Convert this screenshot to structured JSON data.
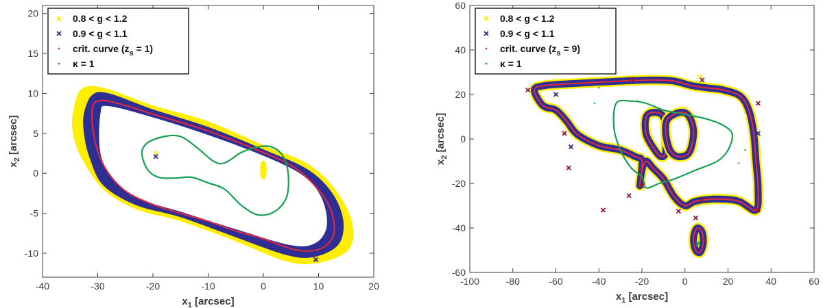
{
  "colors": {
    "yellow": "#ffee00",
    "navy": "#2e2e93",
    "red": "#e8283c",
    "green": "#14a050",
    "axis": "#3a3a3a",
    "marker": "#8a1c2c"
  },
  "chart_data": [
    {
      "type": "scatter",
      "xlim": [
        -40,
        20
      ],
      "ylim": [
        -13,
        21
      ],
      "xticks": [
        "-40",
        "-30",
        "-20",
        "-10",
        "0",
        "10",
        "20"
      ],
      "yticks": [
        "-10",
        "-5",
        "0",
        "5",
        "10",
        "15",
        "20"
      ],
      "xlabel": {
        "main": "x",
        "sub": "1",
        "rest": " [arcsec]"
      },
      "ylabel": {
        "main": "x",
        "sub": "2",
        "rest": " [arcsec]"
      },
      "legend_position": "top-left",
      "legend": [
        {
          "label": "0.8 < g < 1.2",
          "marker": "x",
          "color": "#ffee00"
        },
        {
          "label": "0.9 < g < 1.1",
          "marker": "x",
          "color": "#2e2e93"
        },
        {
          "label": "crit. curve (z",
          "sub": "s",
          "rest": " = 1)",
          "marker": "dot",
          "color": "#e8283c"
        },
        {
          "label": "κ = 1",
          "marker": "dot",
          "color": "#14a050"
        }
      ],
      "regions": {
        "yellow_band": [
          [
            -34.5,
            7.5
          ],
          [
            -33,
            10.5
          ],
          [
            -29,
            10.7
          ],
          [
            -20,
            8.5
          ],
          [
            -10,
            6.5
          ],
          [
            0,
            3.5
          ],
          [
            8,
            1.2
          ],
          [
            13,
            -2
          ],
          [
            16,
            -6
          ],
          [
            15.5,
            -9.5
          ],
          [
            10,
            -11.2
          ],
          [
            4,
            -11
          ],
          [
            -5,
            -8.5
          ],
          [
            -15,
            -6
          ],
          [
            -23,
            -4.5
          ],
          [
            -29,
            -2
          ],
          [
            -33,
            2
          ],
          [
            -34.5,
            5
          ]
        ],
        "navy_band_outer": [
          [
            -32.5,
            7.5
          ],
          [
            -31,
            9.8
          ],
          [
            -28,
            10
          ],
          [
            -20,
            8
          ],
          [
            -10,
            5.8
          ],
          [
            0,
            3
          ],
          [
            8,
            0.5
          ],
          [
            12.5,
            -2.5
          ],
          [
            14.5,
            -6
          ],
          [
            13.5,
            -9
          ],
          [
            9,
            -10.5
          ],
          [
            4,
            -10.2
          ],
          [
            -5,
            -8
          ],
          [
            -15,
            -5.5
          ],
          [
            -23,
            -4
          ],
          [
            -29,
            -1.5
          ],
          [
            -31.5,
            2
          ],
          [
            -32.5,
            5
          ]
        ],
        "white_inner": [
          [
            -29.5,
            7.5
          ],
          [
            -28,
            8.4
          ],
          [
            -20,
            7
          ],
          [
            -10,
            4.8
          ],
          [
            0,
            2.2
          ],
          [
            7,
            -0.2
          ],
          [
            10.5,
            -3
          ],
          [
            11.5,
            -6.5
          ],
          [
            9.5,
            -8.7
          ],
          [
            5,
            -9
          ],
          [
            -5,
            -7
          ],
          [
            -15,
            -4.8
          ],
          [
            -22,
            -3.3
          ],
          [
            -27,
            -1
          ],
          [
            -29.5,
            2.5
          ]
        ],
        "yellow_blob": {
          "cx": 0,
          "cy": 0.4,
          "rx": 0.6,
          "ry": 1.2
        }
      },
      "series": [
        {
          "name": "crit. curve (zs = 1)",
          "kind": "closed",
          "color": "#e8283c",
          "points": [
            [
              -31,
              8
            ],
            [
              -29.5,
              9.1
            ],
            [
              -25,
              8.5
            ],
            [
              -20,
              7.4
            ],
            [
              -15,
              6.4
            ],
            [
              -10,
              5.3
            ],
            [
              -5,
              4
            ],
            [
              0,
              2.6
            ],
            [
              5,
              1
            ],
            [
              9,
              -1.3
            ],
            [
              12,
              -4.2
            ],
            [
              12.8,
              -7.5
            ],
            [
              10.5,
              -9.4
            ],
            [
              6,
              -9.6
            ],
            [
              0,
              -8.2
            ],
            [
              -5,
              -7.2
            ],
            [
              -10,
              -6
            ],
            [
              -15,
              -5
            ],
            [
              -20,
              -3.9
            ],
            [
              -25,
              -2.2
            ],
            [
              -28.5,
              0.5
            ],
            [
              -30.5,
              4
            ]
          ]
        },
        {
          "name": "κ = 1",
          "kind": "closed",
          "color": "#14a050",
          "points": [
            [
              -22,
              2.5
            ],
            [
              -21,
              3.8
            ],
            [
              -18,
              4.6
            ],
            [
              -15,
              4.6
            ],
            [
              -12,
              3.2
            ],
            [
              -9,
              1.5
            ],
            [
              -7,
              1.3
            ],
            [
              -4,
              2.6
            ],
            [
              -1,
              3.3
            ],
            [
              1.5,
              3.3
            ],
            [
              3.5,
              2.2
            ],
            [
              4.5,
              0
            ],
            [
              4.2,
              -3
            ],
            [
              2,
              -4.8
            ],
            [
              -1,
              -5.2
            ],
            [
              -4,
              -4
            ],
            [
              -7,
              -2
            ],
            [
              -10,
              -1.2
            ],
            [
              -13,
              -0.5
            ],
            [
              -16,
              -0.6
            ],
            [
              -19,
              -0.5
            ],
            [
              -21,
              0.5
            ]
          ]
        }
      ],
      "markers": [
        {
          "x": -19.5,
          "y": 2.5,
          "color": "#ffee00"
        },
        {
          "x": -19.5,
          "y": 2.1,
          "color": "#2e2e93"
        },
        {
          "x": 9.5,
          "y": -10.8,
          "color": "#2e2e93"
        }
      ]
    },
    {
      "type": "scatter",
      "xlim": [
        -100,
        60
      ],
      "ylim": [
        -60,
        60
      ],
      "xticks": [
        "-100",
        "-80",
        "-60",
        "-40",
        "-20",
        "0",
        "20",
        "40",
        "60"
      ],
      "yticks": [
        "-60",
        "-40",
        "-20",
        "0",
        "20",
        "40",
        "60"
      ],
      "xlabel": {
        "main": "x",
        "sub": "1",
        "rest": " [arcsec]"
      },
      "ylabel": {
        "main": "x",
        "sub": "2",
        "rest": " [arcsec]"
      },
      "legend_position": "top-left",
      "legend": [
        {
          "label": "0.8 < g < 1.2",
          "marker": "x",
          "color": "#ffee00"
        },
        {
          "label": "0.9 < g < 1.1",
          "marker": "x",
          "color": "#2e2e93"
        },
        {
          "label": "crit. curve (z",
          "sub": "s",
          "rest": " = 9)",
          "marker": "dot",
          "color": "#e8283c"
        },
        {
          "label": "κ = 1",
          "marker": "dot",
          "color": "#14a050"
        }
      ],
      "series": [
        {
          "name": "crit. curve (zs = 9)",
          "kind": "closed",
          "color": "#e8283c",
          "points": [
            [
              -70,
              22
            ],
            [
              -65,
              24
            ],
            [
              -50,
              25
            ],
            [
              -30,
              26
            ],
            [
              -15,
              26.5
            ],
            [
              -5,
              26
            ],
            [
              3,
              24
            ],
            [
              10,
              23
            ],
            [
              18,
              22
            ],
            [
              26,
              19
            ],
            [
              30,
              12
            ],
            [
              32,
              2
            ],
            [
              33,
              -10
            ],
            [
              34,
              -22
            ],
            [
              33,
              -32
            ],
            [
              25,
              -28
            ],
            [
              15,
              -27
            ],
            [
              5,
              -28
            ],
            [
              0,
              -30
            ],
            [
              -5,
              -26
            ],
            [
              -10,
              -18
            ],
            [
              -15,
              -13
            ],
            [
              -18,
              -10
            ],
            [
              -20,
              -14
            ],
            [
              -21,
              -21
            ],
            [
              -20,
              -10
            ],
            [
              -23,
              -8
            ],
            [
              -30,
              -5
            ],
            [
              -40,
              -3
            ],
            [
              -50,
              2
            ],
            [
              -55,
              8
            ],
            [
              -60,
              13
            ],
            [
              -66,
              15
            ]
          ]
        },
        {
          "name": "inner-loop-left",
          "kind": "closed",
          "color": "#e8283c",
          "points": [
            [
              -18,
              10
            ],
            [
              -14,
              12
            ],
            [
              -10,
              10
            ],
            [
              -9,
              3
            ],
            [
              -9,
              -6
            ],
            [
              -11,
              -8
            ],
            [
              -14,
              -5
            ],
            [
              -18,
              2
            ]
          ]
        },
        {
          "name": "inner-loop-right",
          "kind": "closed",
          "color": "#e8283c",
          "points": [
            [
              -8,
              9
            ],
            [
              -2,
              12
            ],
            [
              2,
              10
            ],
            [
              4,
              3
            ],
            [
              2,
              -6
            ],
            [
              -3,
              -8
            ],
            [
              -7,
              -5
            ],
            [
              -9,
              3
            ]
          ]
        },
        {
          "name": "small-island",
          "kind": "closed",
          "color": "#e8283c",
          "points": [
            [
              6,
              -40
            ],
            [
              8,
              -42
            ],
            [
              8.5,
              -47
            ],
            [
              7,
              -51
            ],
            [
              5,
              -50
            ],
            [
              4,
              -46
            ],
            [
              4.5,
              -42
            ]
          ]
        },
        {
          "name": "κ = 1",
          "kind": "closed",
          "color": "#14a050",
          "points": [
            [
              -32,
              16
            ],
            [
              -25,
              17
            ],
            [
              -18,
              16
            ],
            [
              -10,
              13
            ],
            [
              0,
              11
            ],
            [
              10,
              9
            ],
            [
              18,
              6
            ],
            [
              22,
              2
            ],
            [
              20,
              -5
            ],
            [
              15,
              -10
            ],
            [
              5,
              -14
            ],
            [
              -5,
              -18
            ],
            [
              -12,
              -20
            ],
            [
              -18,
              -22
            ],
            [
              -20,
              -17
            ],
            [
              -25,
              -13
            ],
            [
              -30,
              -5
            ],
            [
              -33,
              5
            ]
          ]
        }
      ],
      "markers": [
        {
          "x": -73,
          "y": 22,
          "color": "#8a1c2c"
        },
        {
          "x": -60,
          "y": 20,
          "color": "#2e2e93"
        },
        {
          "x": -56,
          "y": 2.5,
          "color": "#8a1c2c"
        },
        {
          "x": -53,
          "y": -3.5,
          "color": "#2e2e93"
        },
        {
          "x": -54,
          "y": -13,
          "color": "#8a1c2c"
        },
        {
          "x": -38,
          "y": -32,
          "color": "#8a1c2c"
        },
        {
          "x": -26,
          "y": -25.5,
          "color": "#8a1c2c"
        },
        {
          "x": -25,
          "y": 27,
          "color": "#8a1c2c"
        },
        {
          "x": -20,
          "y": -21,
          "color": "#8a1c2c"
        },
        {
          "x": -3,
          "y": -32.5,
          "color": "#8a1c2c"
        },
        {
          "x": 7,
          "y": 28,
          "color": "#ffee00"
        },
        {
          "x": 8,
          "y": 26.5,
          "color": "#8a1c2c"
        },
        {
          "x": 8,
          "y": -27.5,
          "color": "#8a1c2c"
        },
        {
          "x": 5,
          "y": -35.5,
          "color": "#8a1c2c"
        },
        {
          "x": 34,
          "y": 16,
          "color": "#8a1c2c"
        },
        {
          "x": 34,
          "y": 2.5,
          "color": "#2e2e93"
        },
        {
          "x": 34,
          "y": -32,
          "color": "#8a1c2c"
        },
        {
          "x": 6,
          "y": -47,
          "color": "#14a050"
        }
      ],
      "dots": [
        {
          "x": -40,
          "y": 23,
          "color": "#14a050"
        },
        {
          "x": -42,
          "y": 16,
          "color": "#14a050"
        },
        {
          "x": 25,
          "y": -11,
          "color": "#14a050"
        },
        {
          "x": 28,
          "y": -5,
          "color": "#14a050"
        },
        {
          "x": -22,
          "y": 17,
          "color": "#14a050"
        }
      ]
    }
  ]
}
